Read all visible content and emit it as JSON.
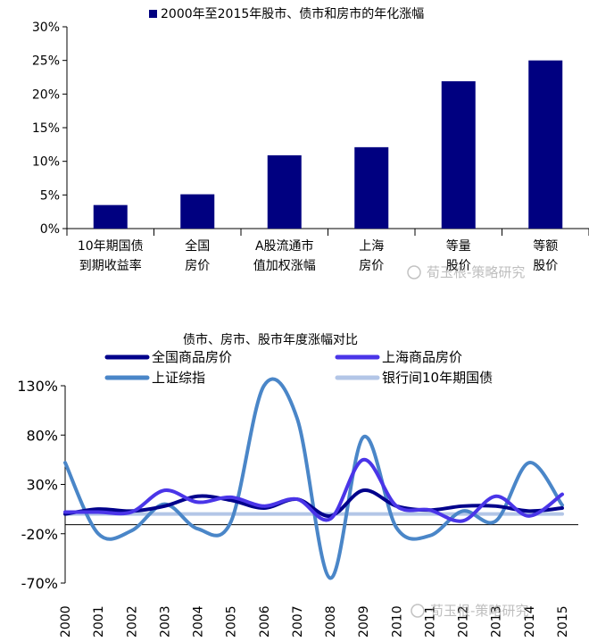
{
  "chart_data": [
    {
      "type": "bar",
      "title": "2000年至2015年股市、债市和房市的年化涨幅",
      "categories": [
        [
          "10年期国债",
          "到期收益率"
        ],
        [
          "全国",
          "房价"
        ],
        [
          "A股流通市",
          "值加权涨幅"
        ],
        [
          "上海",
          "房价"
        ],
        [
          "等量",
          "股价"
        ],
        [
          "等额",
          "股价"
        ]
      ],
      "values": [
        3.5,
        5.1,
        10.9,
        12.1,
        21.9,
        25.0
      ],
      "ylim": [
        0,
        30
      ],
      "yticks": [
        0,
        5,
        10,
        15,
        20,
        25,
        30
      ],
      "tick_suffix": "%",
      "color": "#000080",
      "legend": "top"
    },
    {
      "type": "line",
      "title": "债市、房市、股市年度涨幅对比",
      "x": [
        "2000",
        "2001",
        "2002",
        "2003",
        "2004",
        "2005",
        "2006",
        "2007",
        "2008",
        "2009",
        "2010",
        "2011",
        "2012",
        "2013",
        "2014",
        "2015"
      ],
      "series": [
        {
          "name": "全国商品房价",
          "color": "#00008b",
          "values": [
            0,
            5,
            3,
            8,
            18,
            14,
            6,
            15,
            -2,
            24,
            8,
            4,
            8,
            8,
            3,
            6
          ]
        },
        {
          "name": "上海商品房价",
          "color": "#4a35e8",
          "values": [
            2,
            2,
            2,
            24,
            12,
            17,
            8,
            15,
            -5,
            55,
            8,
            4,
            -7,
            18,
            -2,
            20
          ]
        },
        {
          "name": "上证综指",
          "color": "#4a86c8",
          "values": [
            52,
            -20,
            -17,
            10,
            -15,
            -8,
            130,
            97,
            -65,
            78,
            -14,
            -22,
            3,
            -7,
            52,
            9
          ]
        },
        {
          "name": "银行间10年期国债",
          "color": "#b3c6e7",
          "values": [
            0,
            0,
            0,
            0,
            0,
            0,
            0,
            0,
            0,
            0,
            0,
            0,
            0,
            0,
            0,
            0
          ]
        }
      ],
      "ylim": [
        -70,
        130
      ],
      "yticks": [
        -70,
        -20,
        30,
        80,
        130
      ],
      "tick_suffix": "%",
      "legend": "top"
    }
  ],
  "watermark": {
    "text": "荀玉根-策略研究"
  }
}
